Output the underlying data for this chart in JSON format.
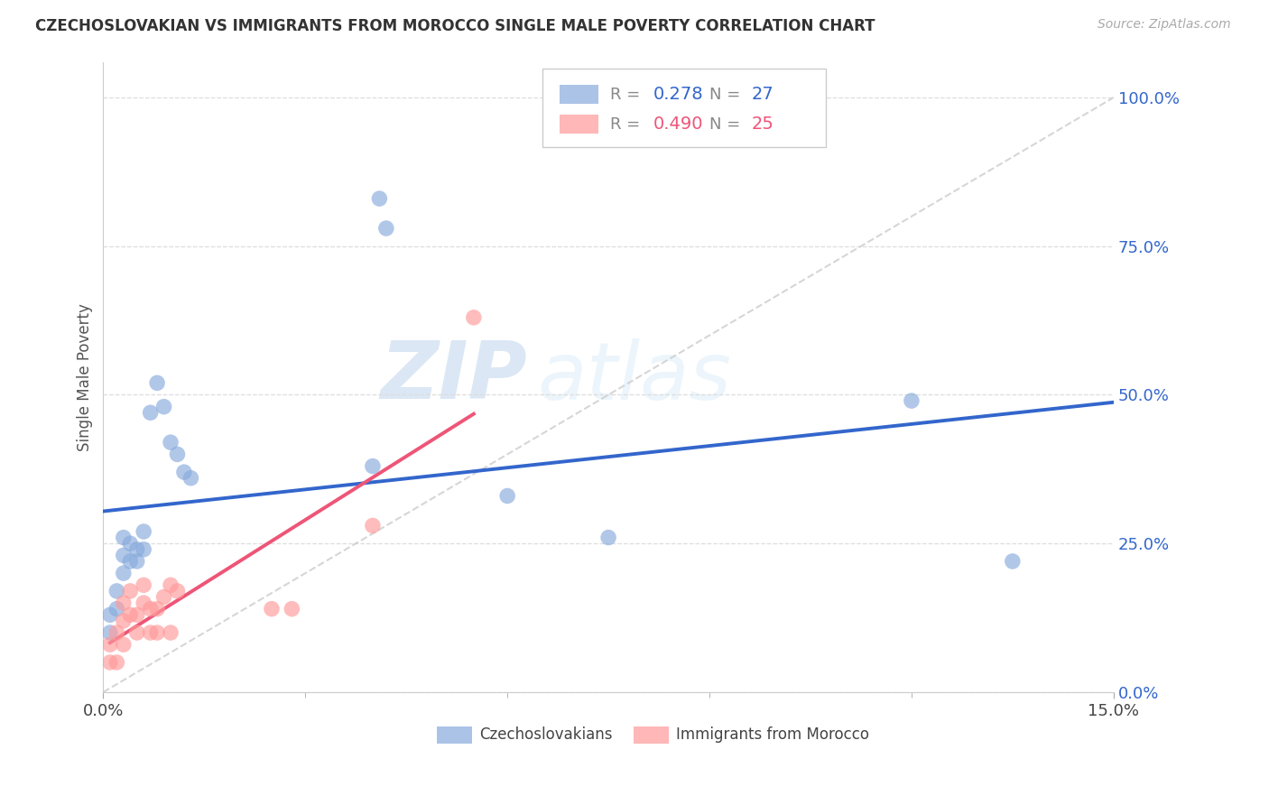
{
  "title": "CZECHOSLOVAKIAN VS IMMIGRANTS FROM MOROCCO SINGLE MALE POVERTY CORRELATION CHART",
  "source": "Source: ZipAtlas.com",
  "ylabel": "Single Male Poverty",
  "ytick_labels": [
    "0.0%",
    "25.0%",
    "50.0%",
    "75.0%",
    "100.0%"
  ],
  "ytick_vals": [
    0.0,
    0.25,
    0.5,
    0.75,
    1.0
  ],
  "xtick_major": [
    0.0,
    0.15
  ],
  "xtick_minor": [
    0.03,
    0.06,
    0.09,
    0.12
  ],
  "xtick_major_labels": [
    "0.0%",
    "15.0%"
  ],
  "xmin": 0.0,
  "xmax": 0.15,
  "ymin": 0.0,
  "ymax": 1.06,
  "blue_R": "0.278",
  "blue_N": "27",
  "pink_R": "0.490",
  "pink_N": "25",
  "blue_color": "#88AADD",
  "pink_color": "#FF9999",
  "blue_line_color": "#3366CC",
  "pink_line_color": "#EE5577",
  "diag_color": "#CCCCCC",
  "legend_label_blue": "Czechoslovakians",
  "legend_label_pink": "Immigrants from Morocco",
  "watermark_zip": "ZIP",
  "watermark_atlas": "atlas",
  "blue_x": [
    0.001,
    0.001,
    0.002,
    0.002,
    0.003,
    0.003,
    0.003,
    0.004,
    0.004,
    0.005,
    0.005,
    0.006,
    0.006,
    0.007,
    0.008,
    0.009,
    0.01,
    0.011,
    0.012,
    0.013,
    0.04,
    0.041,
    0.042,
    0.06,
    0.075,
    0.12,
    0.135
  ],
  "blue_y": [
    0.1,
    0.13,
    0.14,
    0.17,
    0.2,
    0.23,
    0.26,
    0.22,
    0.25,
    0.22,
    0.24,
    0.24,
    0.27,
    0.47,
    0.52,
    0.48,
    0.42,
    0.4,
    0.37,
    0.36,
    0.38,
    0.83,
    0.78,
    0.33,
    0.26,
    0.49,
    0.22
  ],
  "pink_x": [
    0.001,
    0.001,
    0.002,
    0.002,
    0.003,
    0.003,
    0.003,
    0.004,
    0.004,
    0.005,
    0.005,
    0.006,
    0.006,
    0.007,
    0.007,
    0.008,
    0.008,
    0.009,
    0.01,
    0.01,
    0.011,
    0.025,
    0.028,
    0.04,
    0.055
  ],
  "pink_y": [
    0.05,
    0.08,
    0.05,
    0.1,
    0.08,
    0.12,
    0.15,
    0.13,
    0.17,
    0.13,
    0.1,
    0.15,
    0.18,
    0.1,
    0.14,
    0.14,
    0.1,
    0.16,
    0.1,
    0.18,
    0.17,
    0.14,
    0.14,
    0.28,
    0.63
  ]
}
